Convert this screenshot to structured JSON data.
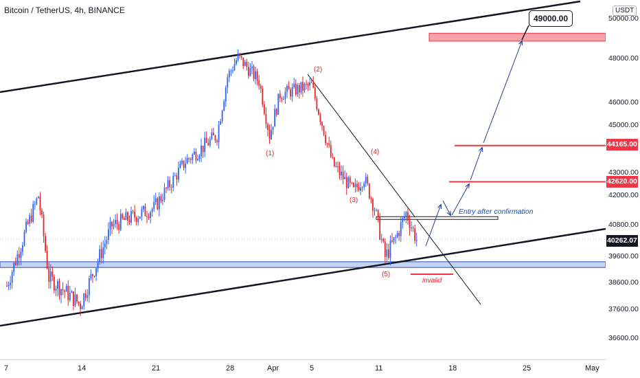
{
  "header": {
    "symbol": "Bitcoin / TetherUS, 4h, BINANCE"
  },
  "price_axis": {
    "unit": "USDT",
    "ticks": [
      "50000.00",
      "48000.00",
      "46000.00",
      "45000.00",
      "43000.00",
      "42000.00",
      "40800.00",
      "39600.00",
      "38600.00",
      "37600.00",
      "36600.00"
    ]
  },
  "time_axis": {
    "ticks": [
      "7",
      "14",
      "21",
      "28",
      "Apr",
      "5",
      "11",
      "18",
      "25",
      "May"
    ]
  },
  "price_labels": {
    "target": "49000.00",
    "level_1": "44165.00",
    "level_2": "42620.00",
    "current": "40262.07"
  },
  "annotations": {
    "wave_labels": [
      "(1)",
      "(2)",
      "(3)",
      "(4)",
      "(5)"
    ],
    "entry_note": "Entry after confirmation",
    "invalid_note": "invalid"
  },
  "colors": {
    "up": "#2962ff",
    "down": "#e0262a",
    "resistance": "#f23645",
    "zone_fill": "#f7a1a8",
    "support_fill": "#b6c7ef",
    "current_label": "#131722",
    "projection": "#1e3f8f"
  },
  "chart_data": {
    "type": "candlestick",
    "symbol": "BTCUSDT",
    "timeframe": "4h",
    "x_ticks": [
      "7",
      "14",
      "21",
      "28",
      "Apr",
      "5",
      "11",
      "18",
      "25",
      "May"
    ],
    "y_ticks": [
      50000,
      48000,
      46000,
      45000,
      43000,
      42000,
      40800,
      39600,
      38600,
      37600,
      36600
    ],
    "anchors": [
      {
        "x": "Mar 7",
        "y": 38500
      },
      {
        "x": "Mar 10",
        "y": 42000
      },
      {
        "x": "Mar 11",
        "y": 38800
      },
      {
        "x": "Mar 14",
        "y": 37800
      },
      {
        "x": "Mar 17",
        "y": 40800
      },
      {
        "x": "Mar 21",
        "y": 41500
      },
      {
        "x": "Mar 24",
        "y": 43500
      },
      {
        "x": "Mar 27",
        "y": 44600
      },
      {
        "x": "Mar 28",
        "y": 47200
      },
      {
        "x": "Mar 29",
        "y": 48100
      },
      {
        "x": "Mar 31",
        "y": 47000
      },
      {
        "x": "Apr 1",
        "y": 44600
      },
      {
        "x": "Apr 2",
        "y": 46400
      },
      {
        "x": "Apr 5",
        "y": 46800
      },
      {
        "x": "Apr 7",
        "y": 43400
      },
      {
        "x": "Apr 9",
        "y": 42200
      },
      {
        "x": "Apr 10",
        "y": 42800
      },
      {
        "x": "Apr 11",
        "y": 41500
      },
      {
        "x": "Apr 12",
        "y": 39600
      },
      {
        "x": "Apr 13",
        "y": 40300
      },
      {
        "x": "Apr 14",
        "y": 41300
      },
      {
        "x": "Apr 15",
        "y": 40262
      }
    ],
    "last_price": 40262.07,
    "levels": [
      44165,
      42620
    ],
    "target": 49000,
    "support_zone": [
      39200,
      39420
    ],
    "sell_zone": [
      48900,
      49300
    ],
    "entry_level": 41100
  }
}
